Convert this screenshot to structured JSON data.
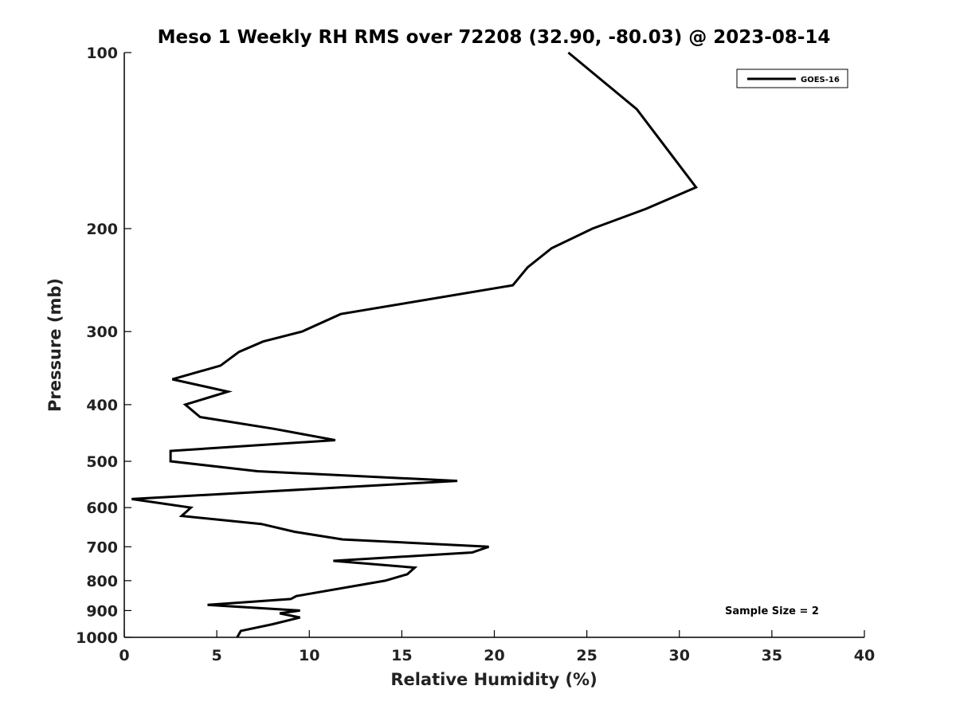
{
  "chart_data": {
    "type": "line",
    "title": "Meso 1 Weekly RH RMS over 72208 (32.90, -80.03) @ 2023-08-14",
    "xlabel": "Relative Humidity (%)",
    "ylabel": "Pressure (mb)",
    "xlim": [
      0,
      40
    ],
    "ylim": [
      1000,
      100
    ],
    "y_scale": "log",
    "y_inverted": true,
    "x_ticks": [
      0,
      5,
      10,
      15,
      20,
      25,
      30,
      35,
      40
    ],
    "y_ticks": [
      100,
      200,
      300,
      400,
      500,
      600,
      700,
      800,
      900,
      1000
    ],
    "grid": false,
    "legend_position": "top-right",
    "annotation": "Sample Size = 2",
    "line_color": "#000000",
    "series": [
      {
        "name": "GOES-16",
        "points": [
          [
            24.0,
            100
          ],
          [
            27.7,
            125
          ],
          [
            29.6,
            150
          ],
          [
            30.9,
            170
          ],
          [
            28.2,
            185
          ],
          [
            25.3,
            200
          ],
          [
            23.1,
            216
          ],
          [
            21.8,
            233
          ],
          [
            21.0,
            250
          ],
          [
            11.7,
            280
          ],
          [
            9.6,
            300
          ],
          [
            7.5,
            312
          ],
          [
            6.2,
            325
          ],
          [
            5.2,
            343
          ],
          [
            2.6,
            362
          ],
          [
            5.6,
            380
          ],
          [
            3.3,
            400
          ],
          [
            4.1,
            420
          ],
          [
            8.1,
            440
          ],
          [
            11.4,
            460
          ],
          [
            2.5,
            480
          ],
          [
            2.5,
            500
          ],
          [
            7.2,
            520
          ],
          [
            18.0,
            540
          ],
          [
            0.4,
            580
          ],
          [
            3.6,
            600
          ],
          [
            3.1,
            620
          ],
          [
            7.4,
            640
          ],
          [
            9.2,
            660
          ],
          [
            11.8,
            680
          ],
          [
            19.7,
            700
          ],
          [
            18.8,
            716
          ],
          [
            11.3,
            740
          ],
          [
            15.7,
            760
          ],
          [
            15.3,
            780
          ],
          [
            14.1,
            800
          ],
          [
            9.3,
            850
          ],
          [
            9.0,
            860
          ],
          [
            4.5,
            880
          ],
          [
            9.5,
            900
          ],
          [
            8.4,
            910
          ],
          [
            9.5,
            925
          ],
          [
            8.0,
            950
          ],
          [
            6.3,
            975
          ],
          [
            6.1,
            1000
          ]
        ]
      }
    ]
  }
}
